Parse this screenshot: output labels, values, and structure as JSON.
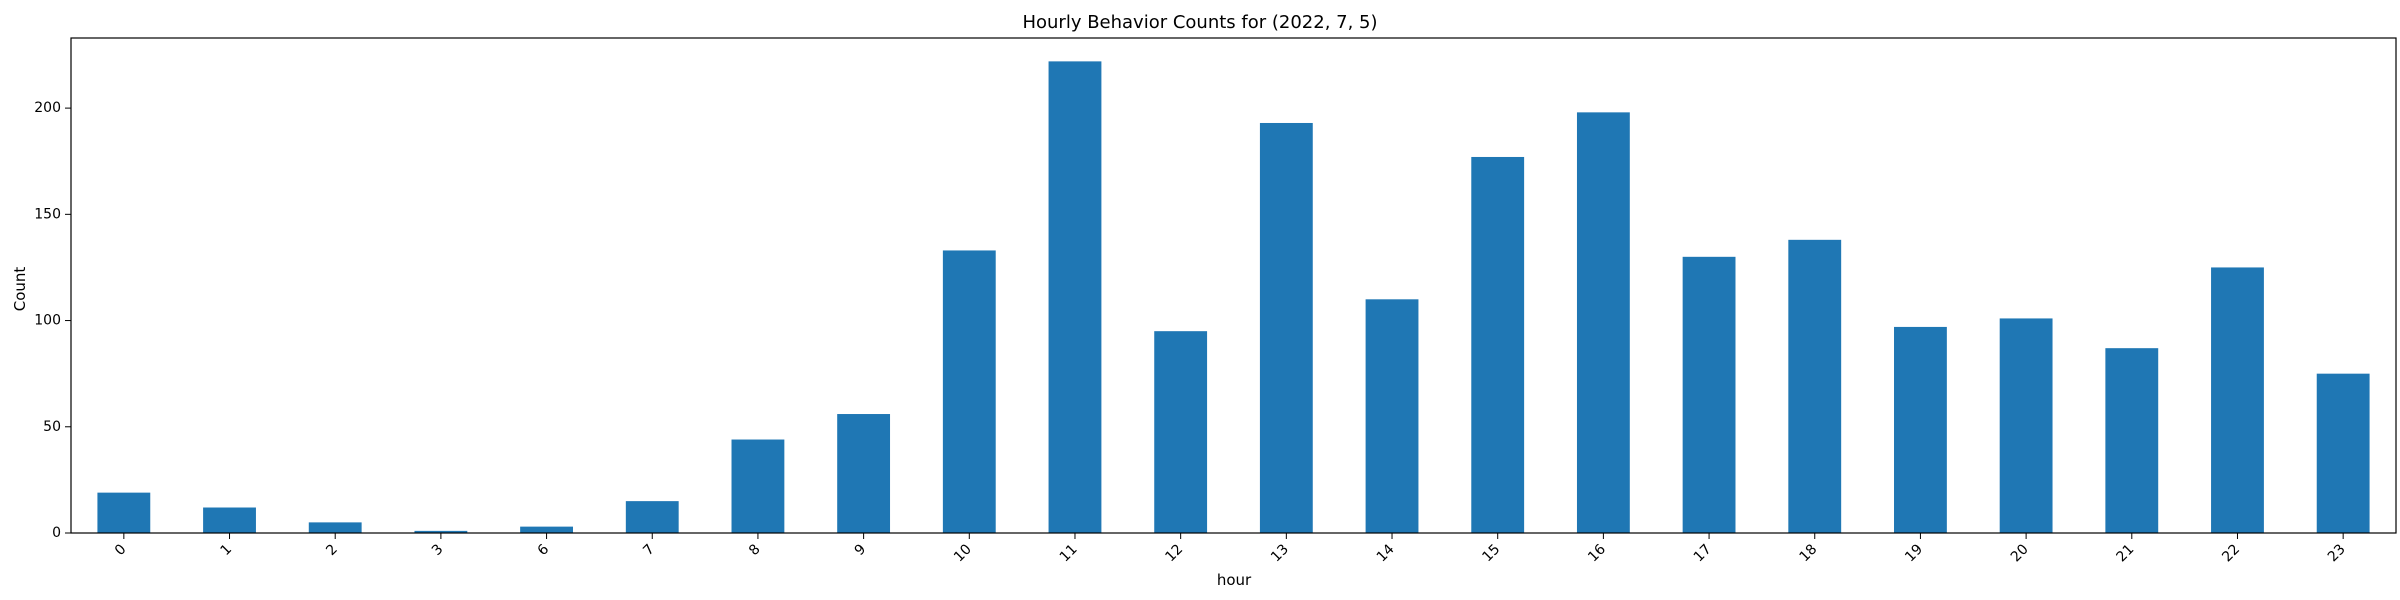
{
  "chart_data": {
    "type": "bar",
    "title": "Hourly Behavior Counts for (2022, 7, 5)",
    "xlabel": "hour",
    "ylabel": "Count",
    "categories": [
      "0",
      "1",
      "2",
      "3",
      "6",
      "7",
      "8",
      "9",
      "10",
      "11",
      "12",
      "13",
      "14",
      "15",
      "16",
      "17",
      "18",
      "19",
      "20",
      "21",
      "22",
      "23"
    ],
    "values": [
      19,
      12,
      5,
      1,
      3,
      15,
      44,
      56,
      133,
      222,
      95,
      193,
      110,
      177,
      198,
      130,
      138,
      97,
      101,
      87,
      125,
      75
    ],
    "ylim": [
      0,
      233
    ],
    "yticks": [
      0,
      50,
      100,
      150,
      200
    ],
    "grid": false,
    "colors": {
      "bar": "#1f77b4",
      "axis": "#000000",
      "background": "#ffffff"
    }
  }
}
